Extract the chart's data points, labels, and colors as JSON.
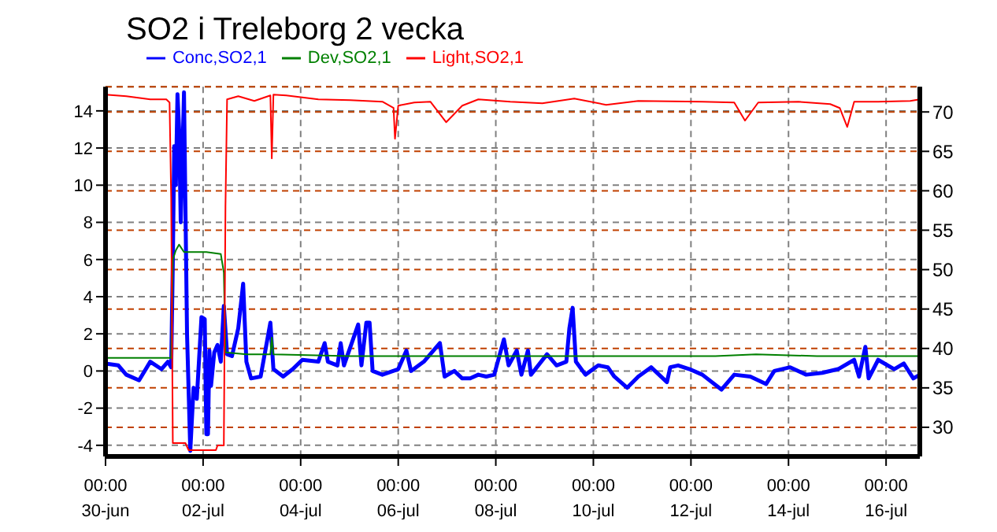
{
  "chart_data": {
    "type": "line",
    "title": "SO2 i Treleborg 2 vecka",
    "legend": "top",
    "grid": true,
    "marker": "none",
    "line_style": "solid",
    "xlim": [
      "--06-30T00:00",
      "--07-16T16:36"
    ],
    "xticks": [
      {
        "value": "--06-30T00:00",
        "label": "00:00\n30-jun"
      },
      {
        "value": "--07-02T00:00",
        "label": "00:00\n02-jul"
      },
      {
        "value": "--07-04T00:00",
        "label": "00:00\n04-jul"
      },
      {
        "value": "--07-06T00:00",
        "label": "00:00\n06-jul"
      },
      {
        "value": "--07-08T00:00",
        "label": "00:00\n08-jul"
      },
      {
        "value": "--07-10T00:00",
        "label": "00:00\n10-jul"
      },
      {
        "value": "--07-12T00:00",
        "label": "00:00\n12-jul"
      },
      {
        "value": "--07-14T00:00",
        "label": "00:00\n14-jul"
      },
      {
        "value": "--07-16T00:00",
        "label": "00:00\n16-jul"
      }
    ],
    "ylim": [
      -4.6,
      15.3
    ],
    "yticks": [
      -4,
      -2,
      0,
      2,
      4,
      6,
      8,
      10,
      12,
      14
    ],
    "y2lim": [
      26.3,
      73.2
    ],
    "y2ticks": [
      30,
      35,
      40,
      45,
      50,
      55,
      60,
      65,
      70
    ],
    "series": [
      {
        "name": "Conc,SO2,1",
        "color": "#0000ff",
        "x": [
          "--06-30T00:00",
          "--06-30T06:18",
          "--06-30T10:12",
          "--06-30T16:30",
          "--06-30T22:00",
          "--07-01T03:30",
          "--07-01T06:42",
          "--07-01T08:18",
          "--07-01T09:06",
          "--07-01T09:48",
          "--07-01T10:36",
          "--07-01T11:24",
          "--07-01T12:12",
          "--07-01T13:00",
          "--07-01T14:36",
          "--07-01T16:06",
          "--07-01T17:42",
          "--07-01T19:18",
          "--07-01T20:54",
          "--07-01T23:12",
          "--07-02T00:48",
          "--07-02T01:36",
          "--07-02T02:24",
          "--07-02T03:06",
          "--07-02T03:54",
          "--07-02T05:30",
          "--07-02T07:06",
          "--07-02T08:42",
          "--07-02T10:12",
          "--07-02T11:48",
          "--07-02T14:12",
          "--07-02T17:18",
          "--07-02T19:42",
          "--07-02T21:18",
          "--07-02T23:36",
          "--07-03T04:18",
          "--07-03T09:06",
          "--07-03T10:36",
          "--07-03T15:24",
          "--07-03T20:06",
          "--07-04T00:48",
          "--07-04T08:42",
          "--07-04T11:48",
          "--07-04T13:24",
          "--07-04T18:06",
          "--07-04T19:42",
          "--07-04T21:18",
          "--07-05T04:18",
          "--07-05T05:54",
          "--07-05T08:18",
          "--07-05T09:54",
          "--07-05T11:24",
          "--07-05T16:12",
          "--07-06T00:00",
          "--07-06T04:00",
          "--07-06T06:18",
          "--07-06T12:36",
          "--07-06T20:30",
          "--07-06T22:48",
          "--07-07T03:36",
          "--07-07T07:30",
          "--07-07T11:24",
          "--07-07T15:24",
          "--07-07T19:18",
          "--07-07T23:12",
          "--07-08T04:00",
          "--07-08T06:18",
          "--07-08T10:18",
          "--07-08T12:36",
          "--07-08T15:48",
          "--07-08T17:18",
          "--07-09T01:12",
          "--07-09T05:54",
          "--07-09T10:42",
          "--07-09T12:12",
          "--07-09T13:48",
          "--07-09T15:24",
          "--07-09T20:06",
          "--07-10T02:24",
          "--07-10T07:06",
          "--07-10T10:18",
          "--07-10T16:36",
          "--07-10T22:06",
          "--07-11T04:24",
          "--07-11T12:12",
          "--07-11T13:48",
          "--07-11T17:42",
          "--07-11T23:18",
          "--07-12T05:36",
          "--07-12T15:00",
          "--07-12T21:18",
          "--07-13T05:12",
          "--07-13T13:00",
          "--07-13T17:00",
          "--07-14T00:48",
          "--07-14T08:42",
          "--07-14T16:36",
          "--07-15T00:24",
          "--07-15T08:18",
          "--07-15T10:42",
          "--07-15T13:48",
          "--07-15T15:24",
          "--07-15T20:06",
          "--07-16T04:00",
          "--07-16T08:42",
          "--07-16T13:24",
          "--07-16T16:36"
        ],
        "values": [
          0.4,
          0.3,
          -0.2,
          -0.5,
          0.5,
          0.1,
          0.5,
          0.2,
          5.8,
          12.1,
          10,
          14.9,
          13,
          8,
          15,
          2,
          -4.3,
          -0.9,
          -1.5,
          2.9,
          2.8,
          -3.4,
          -3.4,
          1.1,
          -0.8,
          1.0,
          1.4,
          0.5,
          3.5,
          0.9,
          0.8,
          2.3,
          4.7,
          0.5,
          -0.4,
          -0.3,
          2.6,
          0.1,
          -0.3,
          0.1,
          0.6,
          0.5,
          1.5,
          0.5,
          0.3,
          1.5,
          0.3,
          2.5,
          0.3,
          2.6,
          2.6,
          0.0,
          -0.2,
          0.1,
          1.1,
          0.0,
          0.5,
          1.5,
          -0.3,
          0.0,
          -0.4,
          -0.4,
          -0.2,
          -0.3,
          -0.2,
          1.7,
          0.3,
          1.1,
          -0.2,
          1.1,
          -0.2,
          0.9,
          0.3,
          0.5,
          2.3,
          3.4,
          0.5,
          -0.2,
          0.3,
          0.2,
          -0.3,
          -0.9,
          -0.3,
          0.2,
          -0.6,
          0.2,
          0.3,
          0.1,
          -0.2,
          -1.0,
          -0.2,
          -0.3,
          -0.7,
          0.0,
          0.2,
          -0.2,
          -0.1,
          0.1,
          0.6,
          -0.3,
          1.3,
          -0.4,
          0.6,
          0.1,
          0.4,
          -0.4,
          -0.2
        ]
      },
      {
        "name": "Dev,SO2,1",
        "color": "#008000",
        "x": [
          "--06-30T00:00",
          "--07-01T08:18",
          "--07-01T09:06",
          "--07-01T10:36",
          "--07-01T12:12",
          "--07-01T14:36",
          "--07-02T01:36",
          "--07-02T08:42",
          "--07-02T10:12",
          "--07-02T11:00",
          "--07-02T21:18",
          "--07-03T09:06",
          "--07-03T09:48",
          "--07-03T10:36",
          "--07-05T00:00",
          "--07-06T00:00",
          "--07-08T08:00",
          "--07-10T10:00",
          "--07-12T12:00",
          "--07-13T08:00",
          "--07-14T14:00",
          "--07-16T16:36"
        ],
        "values": [
          0.7,
          0.7,
          6.0,
          6.5,
          6.8,
          6.4,
          6.4,
          6.3,
          5.3,
          1.0,
          0.9,
          0.9,
          1.8,
          0.9,
          0.8,
          0.8,
          0.8,
          0.8,
          0.8,
          0.9,
          0.8,
          0.8
        ]
      },
      {
        "name": "Light,SO2,1",
        "color": "#ff0000",
        "axis": "y2",
        "x": [
          "--06-30T00:00",
          "--06-30T10:12",
          "--06-30T22:00",
          "--07-01T05:54",
          "--07-01T07:30",
          "--07-01T08:18",
          "--07-01T09:06",
          "--07-01T15:18",
          "--07-01T16:54",
          "--07-02T06:18",
          "--07-02T07:06",
          "--07-02T10:12",
          "--07-02T11:00",
          "--07-02T11:48",
          "--07-02T17:18",
          "--07-03T01:12",
          "--07-03T09:06",
          "--07-03T09:48",
          "--07-03T10:36",
          "--07-03T16:54",
          "--07-04T08:42",
          "--07-05T00:24",
          "--07-05T16:12",
          "--07-05T21:42",
          "--07-05T22:24",
          "--07-06T00:00",
          "--07-06T07:54",
          "--07-06T15:48",
          "--07-06T23:36",
          "--07-07T07:30",
          "--07-07T15:24",
          "--07-08T07:06",
          "--07-08T22:54",
          "--07-09T14:36",
          "--07-10T06:18",
          "--07-10T22:06",
          "--07-12T05:36",
          "--07-12T21:18",
          "--07-13T02:36",
          "--07-13T09:06",
          "--07-14T04:48",
          "--07-14T20:30",
          "--07-15T01:12",
          "--07-15T04:54",
          "--07-15T08:18",
          "--07-15T20:06",
          "--07-16T11:54",
          "--07-16T16:36"
        ],
        "values": [
          72.2,
          72.0,
          71.6,
          71.6,
          71.2,
          59,
          28.0,
          28.0,
          27.1,
          27.1,
          27.7,
          27.7,
          58,
          71.6,
          72,
          71.4,
          72.1,
          64.1,
          72.2,
          72.1,
          71.6,
          71.5,
          71.3,
          70.5,
          66.6,
          70.8,
          71.2,
          71.3,
          68.7,
          70.8,
          71.6,
          71.3,
          71.1,
          71.7,
          70.9,
          71.4,
          71.3,
          71.2,
          68.9,
          71.2,
          71.3,
          71.0,
          70.5,
          68.1,
          71.3,
          71.3,
          71.4,
          71.6
        ]
      }
    ]
  }
}
